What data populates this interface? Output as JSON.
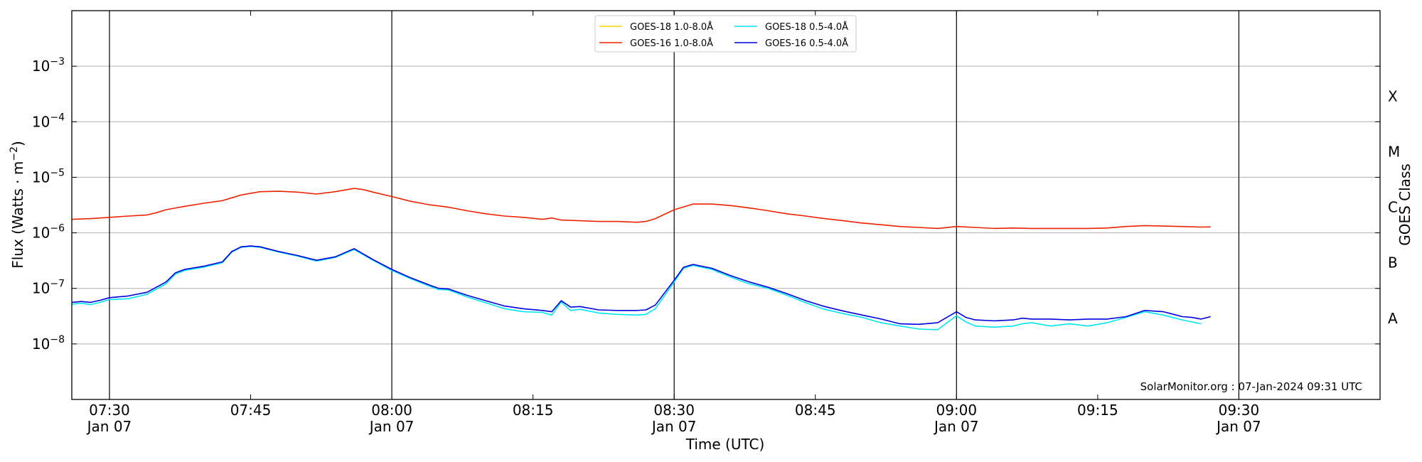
{
  "chart_data": {
    "type": "line",
    "xlabel": "Time (UTC)",
    "ylabel": "Flux (Watts · m",
    "ylabel_sup": "−2",
    "ylabel_close": ")",
    "right_label": "GOES Class",
    "y_scale": "log",
    "ylim": [
      1e-09,
      0.01
    ],
    "xlim": [
      "07:26",
      "09:45"
    ],
    "grid": "horizontal",
    "legend_position": "top-center",
    "credit": "SolarMonitor.org : 07-Jan-2024 09:31 UTC",
    "y_ticks": [
      {
        "exp": "-3",
        "value": 0.001
      },
      {
        "exp": "-4",
        "value": 0.0001
      },
      {
        "exp": "-5",
        "value": 1e-05
      },
      {
        "exp": "-6",
        "value": 1e-06
      },
      {
        "exp": "-7",
        "value": 1e-07
      },
      {
        "exp": "-8",
        "value": 1e-08
      }
    ],
    "y_tick_base": "10",
    "x_ticks": [
      {
        "time": "07:30",
        "label": "07:30",
        "sub": "Jan 07",
        "vline": true
      },
      {
        "time": "07:45",
        "label": "07:45",
        "sub": "",
        "vline": false
      },
      {
        "time": "08:00",
        "label": "08:00",
        "sub": "Jan 07",
        "vline": true
      },
      {
        "time": "08:15",
        "label": "08:15",
        "sub": "",
        "vline": false
      },
      {
        "time": "08:30",
        "label": "08:30",
        "sub": "Jan 07",
        "vline": true
      },
      {
        "time": "08:45",
        "label": "08:45",
        "sub": "",
        "vline": false
      },
      {
        "time": "09:00",
        "label": "09:00",
        "sub": "Jan 07",
        "vline": true
      },
      {
        "time": "09:15",
        "label": "09:15",
        "sub": "",
        "vline": false
      },
      {
        "time": "09:30",
        "label": "09:30",
        "sub": "Jan 07",
        "vline": true
      }
    ],
    "goes_classes": [
      {
        "label": "X",
        "value": 0.0001
      },
      {
        "label": "M",
        "value": 1e-05
      },
      {
        "label": "C",
        "value": 1e-06
      },
      {
        "label": "B",
        "value": 1e-07
      },
      {
        "label": "A",
        "value": 1e-08
      }
    ],
    "series": [
      {
        "name": "GOES-18 1.0-8.0Å",
        "color": "#ffd700",
        "x": [],
        "y": []
      },
      {
        "name": "GOES-16 1.0-8.0Å",
        "color": "#ee2200",
        "x": [
          "07:26",
          "07:28",
          "07:30",
          "07:32",
          "07:34",
          "07:35",
          "07:36",
          "07:38",
          "07:40",
          "07:42",
          "07:44",
          "07:46",
          "07:48",
          "07:50",
          "07:52",
          "07:54",
          "07:56",
          "07:57",
          "07:58",
          "08:00",
          "08:02",
          "08:04",
          "08:06",
          "08:08",
          "08:10",
          "08:12",
          "08:14",
          "08:16",
          "08:17",
          "08:18",
          "08:20",
          "08:22",
          "08:24",
          "08:26",
          "08:27",
          "08:28",
          "08:30",
          "08:32",
          "08:34",
          "08:36",
          "08:38",
          "08:40",
          "08:42",
          "08:44",
          "08:46",
          "08:48",
          "08:50",
          "08:52",
          "08:54",
          "08:56",
          "08:58",
          "09:00",
          "09:02",
          "09:04",
          "09:06",
          "09:08",
          "09:10",
          "09:12",
          "09:14",
          "09:16",
          "09:18",
          "09:20",
          "09:22",
          "09:24",
          "09:26",
          "09:27"
        ],
        "y": [
          1.75e-06,
          1.8e-06,
          1.9e-06,
          2e-06,
          2.1e-06,
          2.3e-06,
          2.6e-06,
          3e-06,
          3.4e-06,
          3.8e-06,
          4.8e-06,
          5.5e-06,
          5.6e-06,
          5.4e-06,
          5e-06,
          5.5e-06,
          6.3e-06,
          6e-06,
          5.4e-06,
          4.5e-06,
          3.7e-06,
          3.2e-06,
          2.9e-06,
          2.5e-06,
          2.2e-06,
          2e-06,
          1.9e-06,
          1.75e-06,
          1.85e-06,
          1.7e-06,
          1.65e-06,
          1.6e-06,
          1.6e-06,
          1.55e-06,
          1.6e-06,
          1.8e-06,
          2.6e-06,
          3.3e-06,
          3.3e-06,
          3.1e-06,
          2.8e-06,
          2.5e-06,
          2.2e-06,
          2e-06,
          1.8e-06,
          1.65e-06,
          1.5e-06,
          1.4e-06,
          1.3e-06,
          1.25e-06,
          1.2e-06,
          1.3e-06,
          1.25e-06,
          1.2e-06,
          1.22e-06,
          1.2e-06,
          1.2e-06,
          1.2e-06,
          1.2e-06,
          1.22e-06,
          1.3e-06,
          1.35e-06,
          1.32e-06,
          1.3e-06,
          1.27e-06,
          1.28e-06
        ]
      },
      {
        "name": "GOES-18 0.5-4.0Å",
        "color": "#00e5ee",
        "x": [
          "07:26",
          "07:27",
          "07:28",
          "07:29",
          "07:30",
          "07:32",
          "07:34",
          "07:36",
          "07:37",
          "07:38",
          "07:40",
          "07:42",
          "07:43",
          "07:44",
          "07:45",
          "07:46",
          "07:48",
          "07:50",
          "07:52",
          "07:54",
          "07:56",
          "07:58",
          "08:00",
          "08:02",
          "08:04",
          "08:05",
          "08:06",
          "08:08",
          "08:10",
          "08:12",
          "08:14",
          "08:16",
          "08:17",
          "08:18",
          "08:19",
          "08:20",
          "08:22",
          "08:24",
          "08:26",
          "08:27",
          "08:28",
          "08:30",
          "08:31",
          "08:32",
          "08:34",
          "08:36",
          "08:38",
          "08:40",
          "08:42",
          "08:44",
          "08:46",
          "08:48",
          "08:50",
          "08:52",
          "08:54",
          "08:56",
          "08:58",
          "09:00",
          "09:01",
          "09:02",
          "09:04",
          "09:06",
          "09:07",
          "09:08",
          "09:10",
          "09:12",
          "09:14",
          "09:16",
          "09:18",
          "09:20",
          "09:22",
          "09:24",
          "09:26"
        ],
        "y": [
          5.2e-08,
          5.4e-08,
          5.1e-08,
          5.6e-08,
          6.3e-08,
          6.5e-08,
          7.8e-08,
          1.2e-07,
          1.8e-07,
          2.1e-07,
          2.4e-07,
          2.9e-07,
          4.5e-07,
          5.5e-07,
          5.7e-07,
          5.5e-07,
          4.5e-07,
          3.8e-07,
          3.1e-07,
          3.6e-07,
          5e-07,
          3.2e-07,
          2.1e-07,
          1.5e-07,
          1.1e-07,
          9.5e-08,
          9.4e-08,
          7e-08,
          5.5e-08,
          4.3e-08,
          3.8e-08,
          3.7e-08,
          3.3e-08,
          5.7e-08,
          4e-08,
          4.2e-08,
          3.6e-08,
          3.4e-08,
          3.3e-08,
          3.4e-08,
          4.3e-08,
          1.3e-07,
          2.3e-07,
          2.6e-07,
          2.2e-07,
          1.6e-07,
          1.2e-07,
          1e-07,
          7.5e-08,
          5.5e-08,
          4.2e-08,
          3.5e-08,
          3e-08,
          2.4e-08,
          2.1e-08,
          1.85e-08,
          1.8e-08,
          3.2e-08,
          2.5e-08,
          2.1e-08,
          2e-08,
          2.1e-08,
          2.3e-08,
          2.4e-08,
          2.1e-08,
          2.3e-08,
          2.1e-08,
          2.4e-08,
          3e-08,
          3.8e-08,
          3.3e-08,
          2.7e-08,
          2.3e-08
        ]
      },
      {
        "name": "GOES-16 0.5-4.0Å",
        "color": "#0000dd",
        "x": [
          "07:26",
          "07:27",
          "07:28",
          "07:29",
          "07:30",
          "07:32",
          "07:34",
          "07:36",
          "07:37",
          "07:38",
          "07:40",
          "07:42",
          "07:43",
          "07:44",
          "07:45",
          "07:46",
          "07:48",
          "07:50",
          "07:52",
          "07:54",
          "07:56",
          "07:58",
          "08:00",
          "08:02",
          "08:04",
          "08:05",
          "08:06",
          "08:08",
          "08:10",
          "08:12",
          "08:14",
          "08:16",
          "08:17",
          "08:18",
          "08:19",
          "08:20",
          "08:22",
          "08:24",
          "08:26",
          "08:27",
          "08:28",
          "08:30",
          "08:31",
          "08:32",
          "08:34",
          "08:36",
          "08:38",
          "08:40",
          "08:42",
          "08:44",
          "08:46",
          "08:48",
          "08:50",
          "08:52",
          "08:54",
          "08:56",
          "08:58",
          "09:00",
          "09:01",
          "09:02",
          "09:04",
          "09:06",
          "09:07",
          "09:08",
          "09:10",
          "09:12",
          "09:14",
          "09:16",
          "09:18",
          "09:20",
          "09:22",
          "09:24",
          "09:25",
          "09:26",
          "09:27"
        ],
        "y": [
          5.6e-08,
          5.8e-08,
          5.6e-08,
          6.1e-08,
          6.8e-08,
          7.3e-08,
          8.5e-08,
          1.3e-07,
          1.9e-07,
          2.2e-07,
          2.5e-07,
          3e-07,
          4.6e-07,
          5.6e-07,
          5.8e-07,
          5.6e-07,
          4.6e-07,
          3.9e-07,
          3.2e-07,
          3.7e-07,
          5.2e-07,
          3.3e-07,
          2.2e-07,
          1.55e-07,
          1.15e-07,
          1e-07,
          9.8e-08,
          7.5e-08,
          6e-08,
          4.8e-08,
          4.3e-08,
          4e-08,
          3.8e-08,
          6e-08,
          4.6e-08,
          4.7e-08,
          4.1e-08,
          4e-08,
          4e-08,
          4.1e-08,
          5e-08,
          1.4e-07,
          2.4e-07,
          2.7e-07,
          2.3e-07,
          1.7e-07,
          1.3e-07,
          1.05e-07,
          8e-08,
          6e-08,
          4.7e-08,
          3.9e-08,
          3.3e-08,
          2.8e-08,
          2.3e-08,
          2.25e-08,
          2.4e-08,
          3.8e-08,
          3e-08,
          2.7e-08,
          2.6e-08,
          2.7e-08,
          2.9e-08,
          2.8e-08,
          2.8e-08,
          2.7e-08,
          2.8e-08,
          2.8e-08,
          3.1e-08,
          4e-08,
          3.8e-08,
          3.1e-08,
          3e-08,
          2.8e-08,
          3.1e-08
        ]
      }
    ]
  }
}
